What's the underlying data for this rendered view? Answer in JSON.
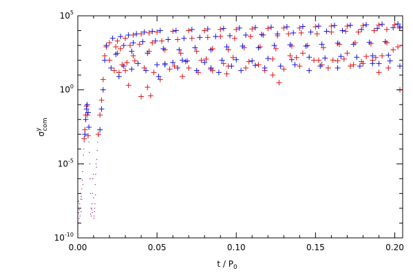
{
  "chart_data": {
    "type": "scatter",
    "title": "",
    "xlabel": {
      "main": "t / P",
      "sub": "0"
    },
    "ylabel": {
      "main": "σ",
      "sup": "y",
      "sub": "com"
    },
    "xlim": [
      0.0,
      0.205
    ],
    "ylim": [
      1e-10,
      100000.0
    ],
    "yscale": "log",
    "grid": false,
    "legend": "none",
    "x_ticks": [
      {
        "value": 0.0,
        "label": "0.00"
      },
      {
        "value": 0.05,
        "label": "0.05"
      },
      {
        "value": 0.1,
        "label": "0.10"
      },
      {
        "value": 0.15,
        "label": "0.15"
      },
      {
        "value": 0.2,
        "label": "0.20"
      }
    ],
    "y_ticks": [
      {
        "value": 1e-10,
        "base": "10",
        "exp": "-10"
      },
      {
        "value": 1e-05,
        "base": "10",
        "exp": "-5"
      },
      {
        "value": 1,
        "base": "10",
        "exp": "0"
      },
      {
        "value": 100000.0,
        "base": "10",
        "exp": "5"
      }
    ],
    "series": [
      {
        "color": "#e01010",
        "points": [
          [
            0.004,
            0.0005
          ],
          [
            0.0045,
            0.002
          ],
          [
            0.005,
            0.02
          ],
          [
            0.0055,
            0.08
          ],
          [
            0.006,
            0.02
          ],
          [
            0.0065,
            0.0008
          ],
          [
            0.013,
            0.001
          ],
          [
            0.014,
            0.02
          ],
          [
            0.015,
            0.2
          ],
          [
            0.016,
            5
          ],
          [
            0.017,
            200
          ],
          [
            0.018,
            800
          ],
          [
            0.02,
            1500
          ],
          [
            0.025,
            2000
          ],
          [
            0.03,
            3000
          ],
          [
            0.035,
            5000
          ],
          [
            0.04,
            6000
          ],
          [
            0.045,
            7000
          ],
          [
            0.05,
            8000
          ],
          [
            0.06,
            9000
          ],
          [
            0.07,
            10000
          ],
          [
            0.08,
            10000
          ],
          [
            0.09,
            12000
          ],
          [
            0.1,
            12000
          ],
          [
            0.11,
            13000
          ],
          [
            0.12,
            14000
          ],
          [
            0.13,
            15000
          ],
          [
            0.14,
            15000
          ],
          [
            0.15,
            18000
          ],
          [
            0.16,
            20000
          ],
          [
            0.17,
            20000
          ],
          [
            0.18,
            22000
          ],
          [
            0.19,
            24000
          ],
          [
            0.2,
            25000
          ],
          [
            0.025,
            300
          ],
          [
            0.035,
            200
          ],
          [
            0.045,
            400
          ],
          [
            0.055,
            500
          ],
          [
            0.065,
            300
          ],
          [
            0.075,
            400
          ],
          [
            0.085,
            600
          ],
          [
            0.095,
            500
          ],
          [
            0.105,
            700
          ],
          [
            0.115,
            800
          ],
          [
            0.125,
            600
          ],
          [
            0.135,
            900
          ],
          [
            0.145,
            1000
          ],
          [
            0.155,
            700
          ],
          [
            0.165,
            1200
          ],
          [
            0.175,
            1500
          ],
          [
            0.185,
            1300
          ],
          [
            0.195,
            1500
          ],
          [
            0.023,
            20
          ],
          [
            0.028,
            50
          ],
          [
            0.031,
            70
          ],
          [
            0.042,
            30
          ],
          [
            0.055,
            60
          ],
          [
            0.068,
            80
          ],
          [
            0.078,
            100
          ],
          [
            0.092,
            60
          ],
          [
            0.108,
            80
          ],
          [
            0.123,
            120
          ],
          [
            0.138,
            150
          ],
          [
            0.152,
            100
          ],
          [
            0.168,
            120
          ],
          [
            0.182,
            180
          ],
          [
            0.188,
            150
          ],
          [
            0.026,
            15
          ],
          [
            0.032,
            2
          ],
          [
            0.04,
            0.35
          ],
          [
            0.044,
            1.5
          ],
          [
            0.046,
            0.4
          ],
          [
            0.052,
            5
          ],
          [
            0.061,
            40
          ],
          [
            0.07,
            30
          ],
          [
            0.081,
            120
          ],
          [
            0.085,
            20
          ],
          [
            0.095,
            40
          ],
          [
            0.098,
            150
          ],
          [
            0.114,
            50
          ],
          [
            0.123,
            10
          ],
          [
            0.127,
            3
          ],
          [
            0.134,
            200
          ],
          [
            0.142,
            300
          ],
          [
            0.149,
            100
          ],
          [
            0.154,
            50
          ],
          [
            0.161,
            100
          ],
          [
            0.17,
            300
          ],
          [
            0.174,
            50
          ],
          [
            0.179,
            80
          ],
          [
            0.186,
            100
          ],
          [
            0.192,
            200
          ],
          [
            0.199,
            500
          ],
          [
            0.202,
            800
          ],
          [
            0.204,
            1
          ],
          [
            0.03,
            20
          ],
          [
            0.036,
            90
          ],
          [
            0.048,
            15
          ],
          [
            0.058,
            25
          ],
          [
            0.066,
            8
          ],
          [
            0.076,
            15
          ],
          [
            0.084,
            25
          ],
          [
            0.094,
            12
          ],
          [
            0.106,
            30
          ],
          [
            0.118,
            20
          ],
          [
            0.13,
            25
          ],
          [
            0.14,
            40
          ],
          [
            0.158,
            30
          ],
          [
            0.164,
            90
          ],
          [
            0.172,
            40
          ],
          [
            0.18,
            60
          ],
          [
            0.19,
            15
          ],
          [
            0.196,
            30
          ],
          [
            0.02,
            100
          ],
          [
            0.024,
            800
          ],
          [
            0.027,
            600
          ],
          [
            0.033,
            1000
          ],
          [
            0.039,
            1200
          ],
          [
            0.047,
            1500
          ],
          [
            0.053,
            2000
          ],
          [
            0.063,
            2500
          ],
          [
            0.072,
            3000
          ],
          [
            0.082,
            3500
          ],
          [
            0.09,
            4000
          ],
          [
            0.099,
            3000
          ],
          [
            0.109,
            4000
          ],
          [
            0.117,
            5000
          ],
          [
            0.126,
            4500
          ],
          [
            0.133,
            6000
          ],
          [
            0.141,
            7000
          ],
          [
            0.151,
            6000
          ],
          [
            0.16,
            8000
          ],
          [
            0.169,
            9000
          ],
          [
            0.177,
            8000
          ],
          [
            0.187,
            10000
          ],
          [
            0.195,
            12000
          ],
          [
            0.203,
            15000
          ]
        ]
      },
      {
        "color": "#1010e0",
        "points": [
          [
            0.0045,
            0.001
          ],
          [
            0.005,
            0.01
          ],
          [
            0.0055,
            0.05
          ],
          [
            0.006,
            0.1
          ],
          [
            0.0065,
            0.03
          ],
          [
            0.007,
            0.003
          ],
          [
            0.014,
            0.002
          ],
          [
            0.015,
            0.05
          ],
          [
            0.016,
            1
          ],
          [
            0.017,
            100
          ],
          [
            0.018,
            1000
          ],
          [
            0.022,
            3000
          ],
          [
            0.027,
            4000
          ],
          [
            0.032,
            5000
          ],
          [
            0.037,
            6000
          ],
          [
            0.042,
            8000
          ],
          [
            0.047,
            9000
          ],
          [
            0.052,
            10000
          ],
          [
            0.062,
            10000
          ],
          [
            0.072,
            12000
          ],
          [
            0.082,
            13000
          ],
          [
            0.092,
            14000
          ],
          [
            0.102,
            15000
          ],
          [
            0.112,
            16000
          ],
          [
            0.122,
            17000
          ],
          [
            0.132,
            18000
          ],
          [
            0.142,
            19000
          ],
          [
            0.152,
            20000
          ],
          [
            0.162,
            22000
          ],
          [
            0.172,
            23000
          ],
          [
            0.182,
            25000
          ],
          [
            0.192,
            27000
          ],
          [
            0.202,
            28000
          ],
          [
            0.024,
            250
          ],
          [
            0.034,
            400
          ],
          [
            0.044,
            300
          ],
          [
            0.054,
            600
          ],
          [
            0.064,
            500
          ],
          [
            0.074,
            700
          ],
          [
            0.084,
            500
          ],
          [
            0.094,
            800
          ],
          [
            0.104,
            900
          ],
          [
            0.114,
            700
          ],
          [
            0.124,
            1000
          ],
          [
            0.134,
            1100
          ],
          [
            0.144,
            900
          ],
          [
            0.154,
            1200
          ],
          [
            0.164,
            1400
          ],
          [
            0.174,
            1200
          ],
          [
            0.184,
            1600
          ],
          [
            0.194,
            1800
          ],
          [
            0.021,
            30
          ],
          [
            0.029,
            40
          ],
          [
            0.038,
            60
          ],
          [
            0.05,
            50
          ],
          [
            0.06,
            70
          ],
          [
            0.069,
            90
          ],
          [
            0.08,
            70
          ],
          [
            0.091,
            100
          ],
          [
            0.1,
            110
          ],
          [
            0.11,
            90
          ],
          [
            0.12,
            130
          ],
          [
            0.135,
            110
          ],
          [
            0.146,
            160
          ],
          [
            0.156,
            140
          ],
          [
            0.166,
            180
          ],
          [
            0.176,
            160
          ],
          [
            0.186,
            200
          ],
          [
            0.196,
            220
          ],
          [
            0.026,
            8
          ],
          [
            0.034,
            25
          ],
          [
            0.043,
            20
          ],
          [
            0.051,
            8
          ],
          [
            0.055,
            50
          ],
          [
            0.063,
            30
          ],
          [
            0.066,
            100
          ],
          [
            0.075,
            20
          ],
          [
            0.084,
            30
          ],
          [
            0.089,
            15
          ],
          [
            0.097,
            40
          ],
          [
            0.103,
            20
          ],
          [
            0.112,
            45
          ],
          [
            0.118,
            30
          ],
          [
            0.128,
            40
          ],
          [
            0.137,
            50
          ],
          [
            0.146,
            20
          ],
          [
            0.153,
            40
          ],
          [
            0.164,
            30
          ],
          [
            0.178,
            40
          ],
          [
            0.186,
            60
          ],
          [
            0.19,
            60
          ],
          [
            0.197,
            90
          ],
          [
            0.204,
            40
          ],
          [
            0.029,
            1000
          ],
          [
            0.035,
            1500
          ],
          [
            0.041,
            1800
          ],
          [
            0.049,
            2000
          ],
          [
            0.057,
            2500
          ],
          [
            0.067,
            3000
          ],
          [
            0.077,
            3500
          ],
          [
            0.087,
            4000
          ],
          [
            0.096,
            4500
          ],
          [
            0.106,
            5000
          ],
          [
            0.116,
            5500
          ],
          [
            0.126,
            6000
          ],
          [
            0.136,
            7000
          ],
          [
            0.147,
            8000
          ],
          [
            0.157,
            9000
          ],
          [
            0.167,
            10000
          ],
          [
            0.179,
            12000
          ],
          [
            0.189,
            14000
          ],
          [
            0.199,
            16000
          ],
          [
            0.204,
            18000
          ]
        ]
      }
    ],
    "dotted_traces": [
      {
        "color": "#9a1a8a",
        "points": [
          [
            0.0005,
            3e-08
          ],
          [
            0.0008,
            2e-09
          ],
          [
            0.001,
            8e-09
          ],
          [
            0.0012,
            2e-08
          ],
          [
            0.0015,
            1e-08
          ],
          [
            0.0018,
            4e-08
          ],
          [
            0.002,
            1e-07
          ],
          [
            0.0023,
            6e-08
          ],
          [
            0.0025,
            2e-07
          ],
          [
            0.0028,
            8e-07
          ],
          [
            0.003,
            3e-06
          ],
          [
            0.0033,
            1e-05
          ],
          [
            0.0035,
            4e-05
          ],
          [
            0.0038,
            0.0001
          ],
          [
            0.004,
            0.0003
          ],
          [
            0.007,
            0.0003
          ],
          [
            0.0073,
            6e-05
          ],
          [
            0.0075,
            1e-05
          ],
          [
            0.0078,
            1e-06
          ],
          [
            0.008,
            1e-07
          ],
          [
            0.0083,
            1e-08
          ],
          [
            0.0085,
            3e-09
          ],
          [
            0.0088,
            8e-09
          ],
          [
            0.009,
            2e-08
          ],
          [
            0.0093,
            1e-07
          ],
          [
            0.0095,
            1e-06
          ],
          [
            0.0098,
            2e-06
          ],
          [
            0.01,
            5e-08
          ],
          [
            0.0103,
            3e-09
          ],
          [
            0.0105,
            6e-09
          ],
          [
            0.0108,
            2e-08
          ],
          [
            0.011,
            4e-07
          ],
          [
            0.0113,
            2e-06
          ],
          [
            0.0115,
            1e-05
          ],
          [
            0.0118,
            6e-06
          ],
          [
            0.012,
            2e-05
          ],
          [
            0.0123,
            8e-05
          ],
          [
            0.0125,
            0.0003
          ],
          [
            0.0128,
            0.0008
          ],
          [
            0.0003,
            1e-09
          ],
          [
            0.0006,
            5e-09
          ],
          [
            0.0014,
            3e-09
          ],
          [
            0.0021,
            6e-09
          ],
          [
            0.0026,
            4e-08
          ],
          [
            0.0032,
            4e-07
          ],
          [
            0.0081,
            4e-09
          ],
          [
            0.0087,
            1e-08
          ],
          [
            0.0092,
            5e-09
          ],
          [
            0.0101,
            2e-09
          ],
          [
            0.0107,
            1e-08
          ],
          [
            0.0112,
            8e-08
          ]
        ]
      }
    ]
  }
}
